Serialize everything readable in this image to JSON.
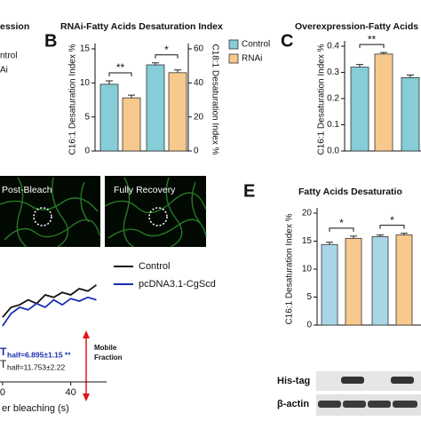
{
  "figure": {
    "panel_labels": [
      "B",
      "C",
      "E"
    ],
    "cropped_texts": [
      "ession",
      "ntrol",
      "Ai"
    ],
    "image_labels": [
      "Post-Bleach",
      "Fully Recovery"
    ],
    "blot_labels": [
      "His-tag",
      "β-actin"
    ],
    "frap_annotations": {
      "thalf_1": {
        "symbol": "T",
        "text": "half=6.895±1.15 **"
      },
      "thalf_2": {
        "symbol": "T",
        "text": "half=11.753±2.22"
      },
      "mobile_fraction": [
        "Mobile",
        "Fraction"
      ]
    }
  },
  "chart_data": [
    {
      "type": "bar",
      "title": "RNAi-Fatty Acids Desaturation Index",
      "y_label": "C16:1 Desaturation Index %",
      "y2_label": "C18:1 Desaturation Index %",
      "categories": [
        null,
        null
      ],
      "category_axes": [
        "y",
        "y2"
      ],
      "series": [
        {
          "name": "Control",
          "color": "#86cdd8",
          "values": [
            9.8,
            50.6
          ],
          "errors": [
            0.5,
            1.2
          ]
        },
        {
          "name": "RNAi",
          "color": "#f8c98c",
          "values": [
            7.8,
            46
          ],
          "errors": [
            0.4,
            1.6
          ]
        }
      ],
      "significance": [
        "**",
        "*"
      ],
      "ylim": [
        0,
        15
      ],
      "yticks": [
        0,
        5,
        10,
        15
      ],
      "y2lim": [
        0,
        60
      ],
      "y2ticks": [
        0,
        20,
        40,
        60
      ],
      "legend": "right"
    },
    {
      "type": "bar",
      "title": "Overexpression-Fatty Acids",
      "y_label": "C16:1 Desaturation Index %",
      "categories": [
        null,
        null
      ],
      "series": [
        {
          "color": "#86cdd8",
          "values": [
            0.32,
            0.28
          ],
          "errors": [
            0.01,
            0.01
          ]
        },
        {
          "color": "#f8c98c",
          "values": [
            0.37,
            null
          ],
          "errors": [
            0.006,
            null
          ]
        }
      ],
      "significance": [
        "**",
        null
      ],
      "ylim": [
        0,
        0.4
      ],
      "yticks": [
        {
          "value": 0,
          "label": "0.0"
        },
        0.1,
        0.2,
        0.3,
        0.4
      ]
    },
    {
      "type": "bar",
      "title": "Fatty Acids Desaturatio",
      "y_label": "C16:1 Desaturation Index %",
      "categories": [
        null,
        null
      ],
      "series": [
        {
          "color": "#a9d6e6",
          "values": [
            14.4,
            15.8
          ],
          "errors": [
            0.4,
            0.3
          ]
        },
        {
          "color": "#f8c98c",
          "values": [
            15.5,
            16.1
          ],
          "errors": [
            0.4,
            0.3
          ]
        }
      ],
      "significance": [
        "*",
        "*"
      ],
      "ylim": [
        0,
        20
      ],
      "yticks": [
        0,
        5,
        10,
        15,
        20
      ]
    },
    {
      "type": "line",
      "x_label": "er bleaching (s)",
      "x": [
        0,
        5,
        10,
        15,
        20,
        25,
        30,
        35,
        40,
        45,
        50,
        55
      ],
      "series": [
        {
          "name": "Control",
          "color": "#111111",
          "values": [
            0.52,
            0.6,
            0.62,
            0.66,
            0.63,
            0.7,
            0.68,
            0.72,
            0.7,
            0.75,
            0.73,
            0.78
          ]
        },
        {
          "name": "pcDNA3.1-CgScd",
          "color": "#1a2fb0",
          "values": [
            0.45,
            0.55,
            0.6,
            0.58,
            0.63,
            0.6,
            0.66,
            0.62,
            0.67,
            0.65,
            0.68,
            0.66
          ]
        }
      ],
      "xlim": [
        -1.5,
        61
      ],
      "xticks": [
        0,
        40
      ],
      "ylim": [
        0,
        1
      ],
      "legend": "upper right"
    }
  ]
}
